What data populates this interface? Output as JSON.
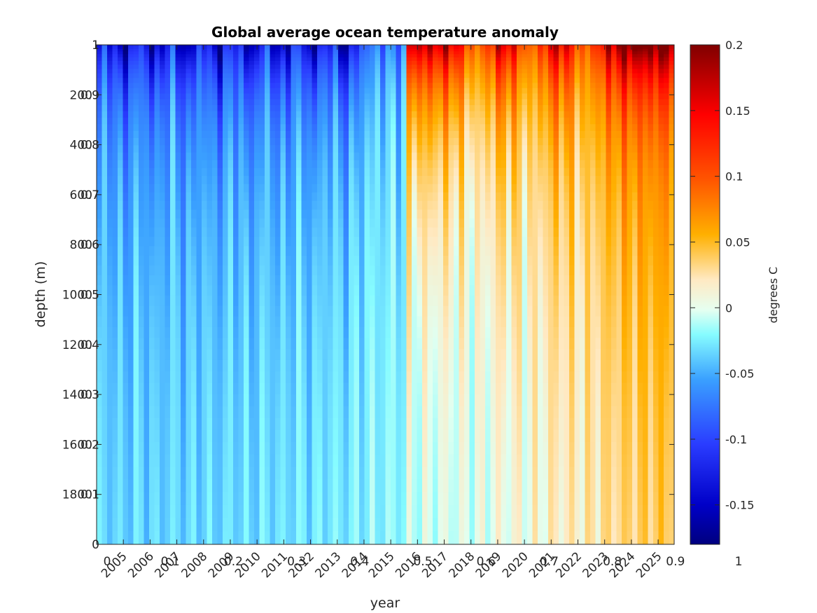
{
  "chart_data": {
    "type": "heatmap",
    "title": "Global average ocean temperature anomaly",
    "xlabel": "year",
    "ylabel": "depth (m)",
    "x_range": [
      2004,
      2025.6
    ],
    "y_range": [
      0,
      2000
    ],
    "x_ticks": [
      "2005",
      "2006",
      "2007",
      "2008",
      "2009",
      "2010",
      "2011",
      "2012",
      "2013",
      "2014",
      "2015",
      "2016",
      "2017",
      "2018",
      "2019",
      "2020",
      "2021",
      "2022",
      "2023",
      "2024",
      "2025"
    ],
    "y_ticks": [
      "200",
      "400",
      "600",
      "800",
      "1000",
      "1200",
      "1400",
      "1600",
      "1800"
    ],
    "overlay_x_ticks": [
      "0",
      "0.1",
      "0.2",
      "0.3",
      "0.4",
      "0.5",
      "0.6",
      "0.7",
      "0.8",
      "0.9",
      "1"
    ],
    "overlay_y_ticks": [
      "0",
      "0.1",
      "0.2",
      "0.3",
      "0.4",
      "0.5",
      "0.6",
      "0.7",
      "0.8",
      "0.9",
      "1"
    ],
    "colorbar": {
      "label": "degrees C",
      "range": [
        -0.18,
        0.2
      ],
      "ticks": [
        "0.2",
        "0.15",
        "0.1",
        "0.05",
        "0",
        "-0.05",
        "-0.1",
        "-0.15"
      ],
      "colormap": [
        "#00007f",
        "#0000ff",
        "#3aa0ff",
        "#86fcff",
        "#e6fff0",
        "#ffe9c2",
        "#ffb000",
        "#ff5500",
        "#ff0000",
        "#800000"
      ]
    },
    "description_values": {
      "surface_2005_2013": -0.16,
      "surface_2016": 0.2,
      "surface_2024_2025": 0.2,
      "deep_2005_2013": -0.03,
      "deep_2023_2025": 0.03
    }
  }
}
